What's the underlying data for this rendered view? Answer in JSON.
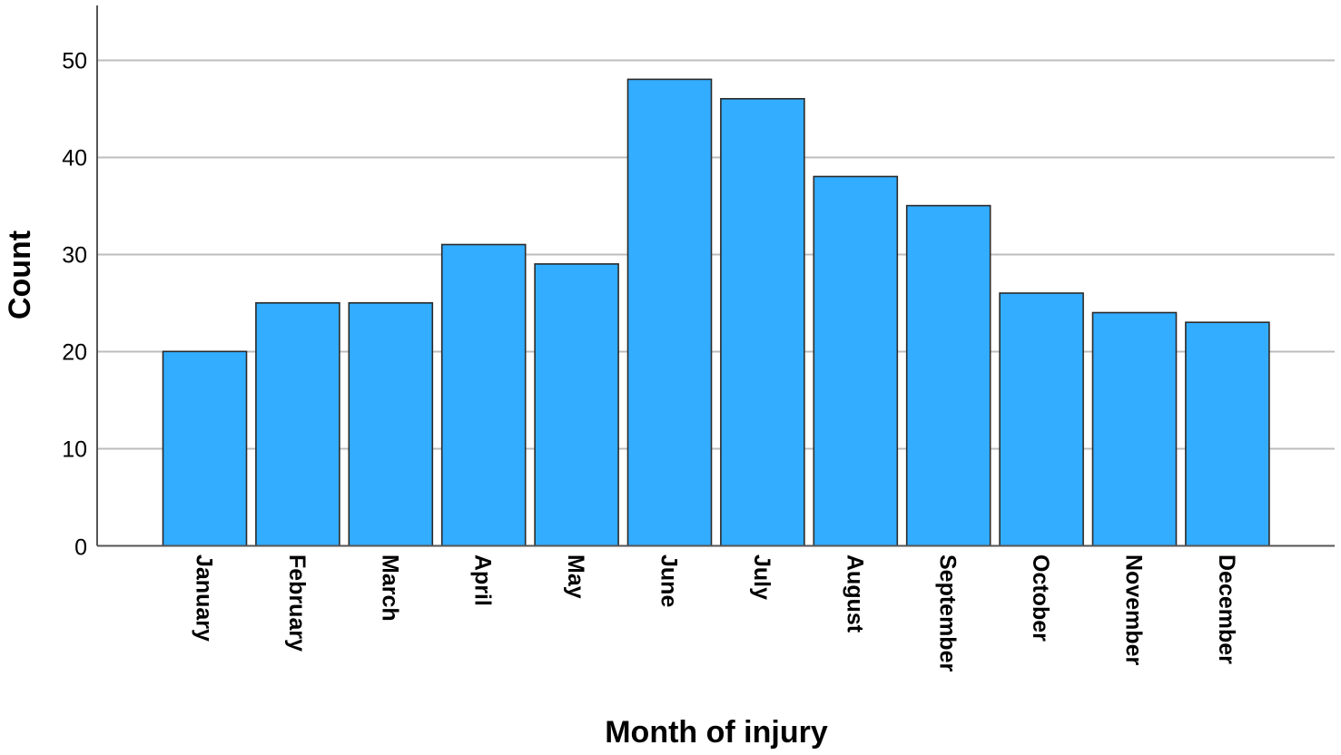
{
  "chart_data": {
    "type": "bar",
    "title": "",
    "xlabel": "Month of injury",
    "ylabel": "Count",
    "categories": [
      "January",
      "February",
      "March",
      "April",
      "May",
      "June",
      "July",
      "August",
      "September",
      "October",
      "November",
      "December"
    ],
    "values": [
      20,
      25,
      25,
      31,
      29,
      48,
      46,
      38,
      35,
      26,
      24,
      23
    ],
    "ylim": [
      0,
      55
    ],
    "yticks": [
      0,
      10,
      20,
      30,
      40,
      50
    ],
    "ytick_labels": [
      "0",
      "10",
      "20",
      "30",
      "40",
      "50"
    ],
    "grid": true,
    "legend": "none",
    "colors": {
      "bar_fill": "#33adff",
      "bar_stroke": "#2a2a2a",
      "grid": "#bdbdbd",
      "axis": "#555555"
    }
  }
}
